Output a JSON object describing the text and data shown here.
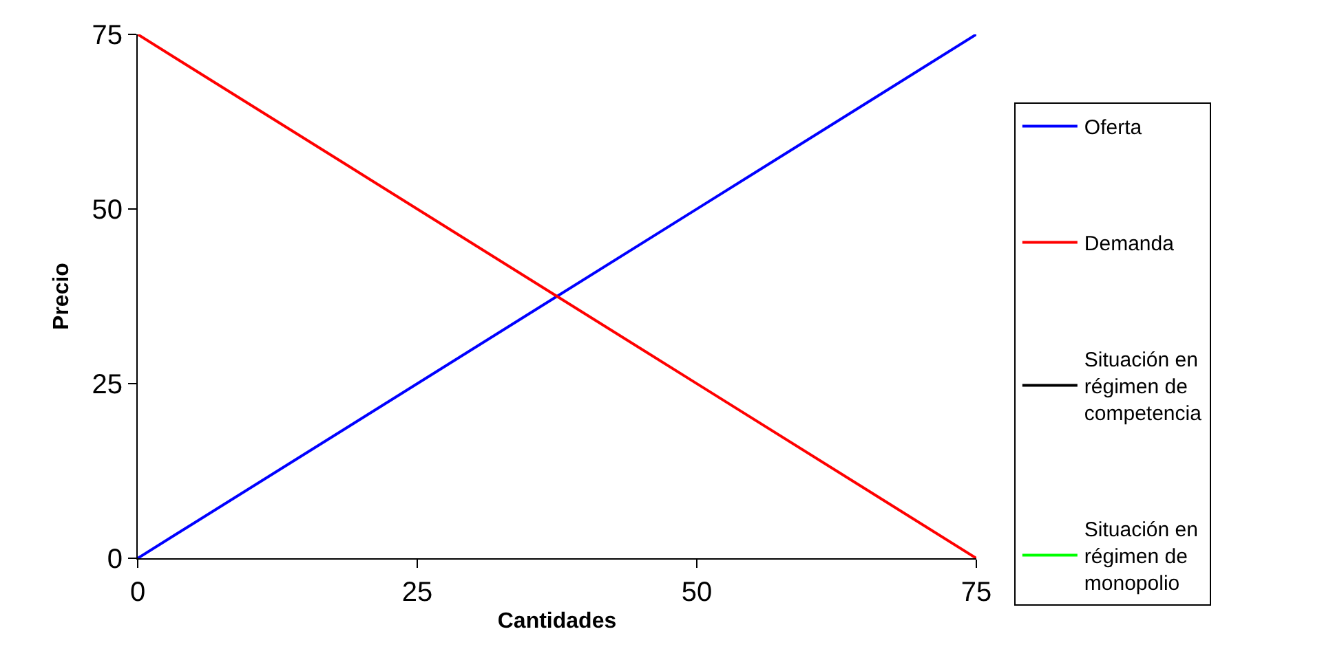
{
  "chart_data": {
    "type": "line",
    "xlabel": "Cantidades",
    "ylabel": "Precio",
    "x": [
      0,
      75
    ],
    "xlim": [
      0,
      75
    ],
    "xticks": [
      0,
      25,
      50,
      75
    ],
    "ylim": [
      0,
      75
    ],
    "yticks": [
      0,
      25,
      50,
      75
    ],
    "grid": false,
    "legend": "right",
    "marker": "none",
    "line_style": "solid",
    "series": [
      {
        "name": "Oferta",
        "color": "#0000ff",
        "values": [
          0,
          75
        ]
      },
      {
        "name": "Demanda",
        "color": "#ff0000",
        "values": [
          75,
          0
        ]
      },
      {
        "name": "Situación en régimen de competencia",
        "color": "#000000",
        "values": [
          null,
          null
        ]
      },
      {
        "name": "Situación en régimen de monopolio",
        "color": "#00ff00",
        "values": [
          null,
          null
        ]
      }
    ]
  }
}
